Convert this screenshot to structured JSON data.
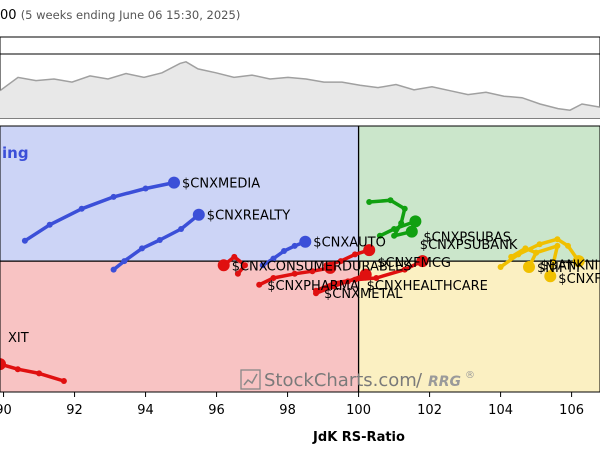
{
  "header": {
    "title_fragment": "00",
    "subtitle": "(5 weeks ending June 06 15:30, 2025)"
  },
  "chart_data": {
    "type": "scatter",
    "subtype": "relative-rotation-graph",
    "xlabel": "JdK RS-Ratio",
    "xlim": [
      89.9,
      106.8
    ],
    "ylim": [
      98.45,
      101.6
    ],
    "x_ticks": [
      "90",
      "92",
      "94",
      "96",
      "98",
      "100",
      "102",
      "104",
      "106"
    ],
    "center": [
      100,
      100
    ],
    "quadrants": {
      "top_left": {
        "label": "ing",
        "color": "#ccd4f6"
      },
      "top_right": {
        "color": "#cbe6cb"
      },
      "bottom_left": {
        "label": "XIT",
        "color": "#f8c3c3"
      },
      "bottom_right": {
        "color": "#fbf0c2"
      }
    },
    "overview_line": [
      [
        0,
        0.35
      ],
      [
        0.03,
        0.52
      ],
      [
        0.06,
        0.48
      ],
      [
        0.09,
        0.5
      ],
      [
        0.12,
        0.46
      ],
      [
        0.15,
        0.54
      ],
      [
        0.18,
        0.5
      ],
      [
        0.21,
        0.57
      ],
      [
        0.24,
        0.52
      ],
      [
        0.27,
        0.58
      ],
      [
        0.3,
        0.7
      ],
      [
        0.31,
        0.72
      ],
      [
        0.33,
        0.63
      ],
      [
        0.36,
        0.58
      ],
      [
        0.39,
        0.52
      ],
      [
        0.42,
        0.55
      ],
      [
        0.45,
        0.5
      ],
      [
        0.48,
        0.52
      ],
      [
        0.51,
        0.5
      ],
      [
        0.54,
        0.46
      ],
      [
        0.57,
        0.46
      ],
      [
        0.6,
        0.42
      ],
      [
        0.63,
        0.39
      ],
      [
        0.66,
        0.43
      ],
      [
        0.69,
        0.36
      ],
      [
        0.72,
        0.4
      ],
      [
        0.75,
        0.35
      ],
      [
        0.78,
        0.3
      ],
      [
        0.81,
        0.33
      ],
      [
        0.84,
        0.28
      ],
      [
        0.87,
        0.26
      ],
      [
        0.9,
        0.18
      ],
      [
        0.93,
        0.12
      ],
      [
        0.95,
        0.1
      ],
      [
        0.97,
        0.18
      ],
      [
        1.0,
        0.14
      ]
    ],
    "series": [
      {
        "name": "$CNXMEDIA",
        "color": "#3b4fd8",
        "points": [
          [
            90.6,
            100.24
          ],
          [
            91.3,
            100.43
          ],
          [
            92.2,
            100.62
          ],
          [
            93.1,
            100.76
          ],
          [
            94.0,
            100.86
          ],
          [
            94.8,
            100.93
          ]
        ]
      },
      {
        "name": "$CNXREALTY",
        "color": "#3b4fd8",
        "points": [
          [
            93.1,
            99.9
          ],
          [
            93.4,
            100.0
          ],
          [
            93.9,
            100.15
          ],
          [
            94.4,
            100.25
          ],
          [
            95.0,
            100.38
          ],
          [
            95.5,
            100.55
          ]
        ]
      },
      {
        "name": "$CNXAUTO",
        "color": "#3b4fd8",
        "points": [
          [
            97.3,
            99.95
          ],
          [
            97.6,
            100.03
          ],
          [
            97.9,
            100.12
          ],
          [
            98.2,
            100.18
          ],
          [
            98.5,
            100.23
          ]
        ]
      },
      {
        "name": "$CNXPSUBANK",
        "color": "#11a011",
        "points": [
          [
            100.3,
            100.7
          ],
          [
            100.9,
            100.72
          ],
          [
            101.3,
            100.62
          ],
          [
            101.2,
            100.45
          ],
          [
            101.0,
            100.3
          ],
          [
            101.5,
            100.35
          ]
        ]
      },
      {
        "name": "$CNXPSUBAS",
        "color": "#11a011",
        "points": [
          [
            100.6,
            100.3
          ],
          [
            101.0,
            100.38
          ],
          [
            101.6,
            100.47
          ]
        ]
      },
      {
        "name": "$CNXFMCG",
        "color": "#e01010",
        "points": [
          [
            99.1,
            99.95
          ],
          [
            99.5,
            100.0
          ],
          [
            99.9,
            100.08
          ],
          [
            100.3,
            100.13
          ]
        ]
      },
      {
        "name": "$CNXCONSUMERDURABLES",
        "color": "#e01010",
        "points": [
          [
            96.6,
            99.85
          ],
          [
            96.8,
            99.95
          ],
          [
            96.5,
            100.05
          ],
          [
            96.2,
            99.95
          ]
        ]
      },
      {
        "name": "$CNXHEALTHCARE",
        "color": "#e01010",
        "points": [
          [
            98.8,
            99.65
          ],
          [
            99.3,
            99.74
          ],
          [
            99.9,
            99.78
          ],
          [
            100.5,
            99.8
          ],
          [
            101.3,
            99.9
          ],
          [
            101.8,
            100.0
          ]
        ]
      },
      {
        "name": "$CNXPHARMA",
        "color": "#e01010",
        "points": [
          [
            97.2,
            99.72
          ],
          [
            97.6,
            99.8
          ],
          [
            98.2,
            99.85
          ],
          [
            98.7,
            99.88
          ],
          [
            99.2,
            99.92
          ]
        ]
      },
      {
        "name": "$CNXMETAL",
        "color": "#e01010",
        "points": [
          [
            98.8,
            99.62
          ],
          [
            99.3,
            99.7
          ],
          [
            99.7,
            99.76
          ],
          [
            100.2,
            99.84
          ]
        ]
      },
      {
        "name": "$CNXIT",
        "color": "#e01010",
        "points": [
          [
            91.7,
            98.58
          ],
          [
            91.0,
            98.67
          ],
          [
            90.4,
            98.72
          ],
          [
            89.9,
            98.78
          ]
        ]
      },
      {
        "name": "$BANKNIFTY",
        "color": "#f0c000",
        "points": [
          [
            104.0,
            99.93
          ],
          [
            104.5,
            100.08
          ],
          [
            105.1,
            100.2
          ],
          [
            105.6,
            100.26
          ],
          [
            105.9,
            100.18
          ],
          [
            106.2,
            100.0
          ]
        ]
      },
      {
        "name": "$NIFTY",
        "color": "#f0c000",
        "points": [
          [
            104.3,
            100.05
          ],
          [
            104.7,
            100.15
          ],
          [
            105.0,
            100.1
          ],
          [
            104.8,
            99.93
          ]
        ]
      },
      {
        "name": "$CNXFIN",
        "color": "#f0c000",
        "points": [
          [
            105.0,
            100.1
          ],
          [
            105.6,
            100.18
          ],
          [
            105.4,
            99.82
          ]
        ]
      }
    ],
    "labels": [
      {
        "text": "$CNXMEDIA",
        "x": 94.8,
        "y": 100.93
      },
      {
        "text": "$CNXREALTY",
        "x": 95.5,
        "y": 100.55
      },
      {
        "text": "$CNXAUTO",
        "x": 98.5,
        "y": 100.23
      },
      {
        "text": "$CNXPSUBAS",
        "x": 101.6,
        "y": 100.29
      },
      {
        "text": "$CNXPSUBANK",
        "x": 101.5,
        "y": 100.2
      },
      {
        "text": "$CNXFMCG",
        "x": 100.3,
        "y": 99.99
      },
      {
        "text": "$CNXCONSUMERDURABLES",
        "x": 96.2,
        "y": 99.95
      },
      {
        "text": "$CNXHEALTHCARE",
        "x": 100.0,
        "y": 99.72
      },
      {
        "text": "$CNXPHARMA",
        "x": 97.2,
        "y": 99.72
      },
      {
        "text": "$CNXMETAL",
        "x": 98.8,
        "y": 99.62
      },
      {
        "text": "$BANKNIFTY",
        "x": 104.9,
        "y": 99.96
      },
      {
        "text": "$NIFTY",
        "x": 104.8,
        "y": 99.93
      },
      {
        "text": "$CNXFIN",
        "x": 105.4,
        "y": 99.8
      },
      {
        "text": "XIT",
        "x": 89.9,
        "y": 99.1
      }
    ]
  },
  "watermark": {
    "brand": "StockCharts.com",
    "separator": "/",
    "product": "RRG",
    "reg_mark": "®"
  }
}
